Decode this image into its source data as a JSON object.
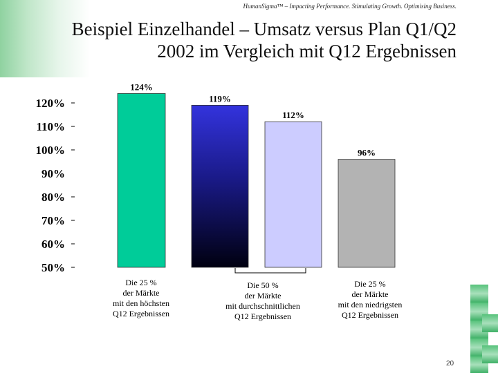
{
  "header": {
    "tagline": "HumanSigma™ – Impacting Performance. Stimulating Growth. Optimising Business.",
    "title_line1": "Beispiel Einzelhandel – Umsatz versus Plan Q1/Q2",
    "title_line2": "2002 im Vergleich mit Q12 Ergebnissen"
  },
  "footer": {
    "page_number": "20"
  },
  "chart_data": {
    "type": "bar",
    "title": "",
    "xlabel": "",
    "ylabel": "",
    "ylim": [
      50,
      125
    ],
    "y_ticks": [
      50,
      60,
      70,
      80,
      90,
      100,
      110,
      120
    ],
    "y_tick_labels": [
      "50%",
      "60%",
      "70%",
      "80%",
      "90%",
      "100%",
      "110%",
      "120%"
    ],
    "categories": [
      "Die 25 %\nder Märkte\nmit den höchsten\nQ12 Ergebnissen",
      "",
      "",
      "Die 25 %\nder Märkte\nmit den niedrigsten\nQ12 Ergebnissen"
    ],
    "middle_group_label": "Die 50 %\nder Märkte\nmit durchschnittlichen\nQ12 Ergebnissen",
    "values": [
      124,
      119,
      112,
      96
    ],
    "value_labels": [
      "124%",
      "119%",
      "112%",
      "96%"
    ],
    "colors": [
      "#00cc99",
      "gradient-blue-black",
      "#ccccff",
      "#b3b3b3"
    ]
  }
}
